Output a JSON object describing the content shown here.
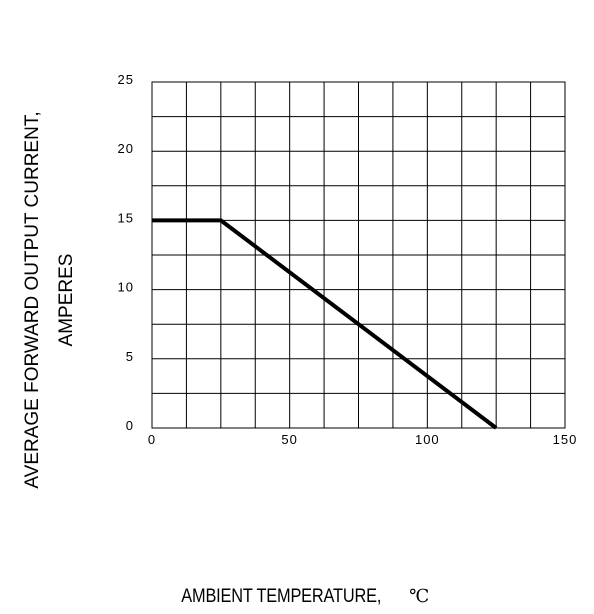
{
  "chart_data": {
    "type": "line",
    "title": "",
    "xlabel": "AMBIENT TEMPERATURE,",
    "xlabel_unit": "℃",
    "ylabel_lines": [
      "AVERAGE FORWARD OUTPUT CURRENT,",
      "AMPERES"
    ],
    "xlim": [
      0,
      150
    ],
    "ylim": [
      0,
      25
    ],
    "x_ticks": [
      "0",
      "50",
      "100",
      "150"
    ],
    "y_ticks": [
      "0",
      "5",
      "10",
      "15",
      "20",
      "25"
    ],
    "grid": true,
    "x_grid_step": 12.5,
    "y_grid_step": 2.5,
    "series": [
      {
        "x": [
          0,
          25,
          125
        ],
        "y": [
          15,
          15,
          0
        ],
        "color": "#000000"
      }
    ]
  }
}
